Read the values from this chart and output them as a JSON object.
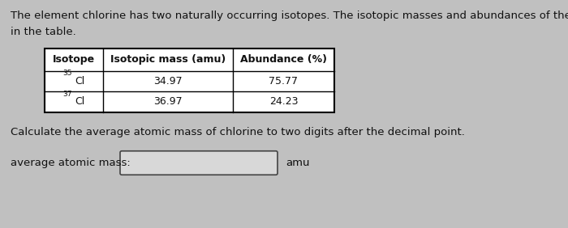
{
  "bg_color": "#c0c0c0",
  "text_color": "#111111",
  "paragraph1_line1": "The element chlorine has two naturally occurring isotopes. The isotopic masses and abundances of these isotopes are shown",
  "paragraph1_line2": "in the table.",
  "question": "Calculate the average atomic mass of chlorine to two digits after the decimal point.",
  "answer_label": "average atomic mass:",
  "answer_unit": "amu",
  "table_headers": [
    "Isotope",
    "Isotopic mass (amu)",
    "Abundance (%)"
  ],
  "table_rows": [
    [
      "35",
      "Cl",
      "34.97",
      "75.77"
    ],
    [
      "37",
      "Cl",
      "36.97",
      "24.23"
    ]
  ],
  "font_size_main": 9.5,
  "font_size_table": 9.0,
  "font_size_super": 6.5,
  "fig_width": 7.0,
  "fig_height": 2.82,
  "dpi": 100
}
